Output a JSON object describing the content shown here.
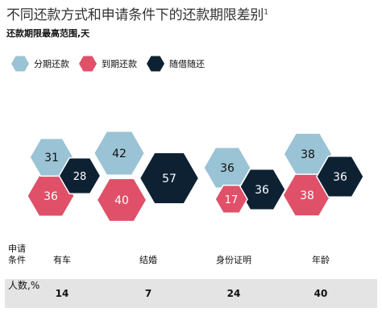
{
  "title": "不同还款方式和申请条件下的还款期限差别",
  "title_footnote": "1",
  "chart_data": {
    "type": "hexagon-cluster",
    "title": "不同还款方式和申请条件下的还款期限差别",
    "subtitle": "还款期限最高范围,天",
    "series": [
      {
        "name": "分期还款",
        "color": "#9bc3d6"
      },
      {
        "name": "到期还款",
        "color": "#e05068"
      },
      {
        "name": "随借随还",
        "color": "#0d2133"
      }
    ],
    "categories": [
      "有车",
      "结婚",
      "身份证明",
      "年龄"
    ],
    "values": {
      "分期还款": [
        31,
        42,
        36,
        38
      ],
      "到期还款": [
        36,
        40,
        17,
        38
      ],
      "随借随还": [
        28,
        57,
        36,
        36
      ]
    },
    "row_header": "申请条件",
    "count_header": "人数,%",
    "counts": [
      14,
      7,
      24,
      40
    ]
  }
}
